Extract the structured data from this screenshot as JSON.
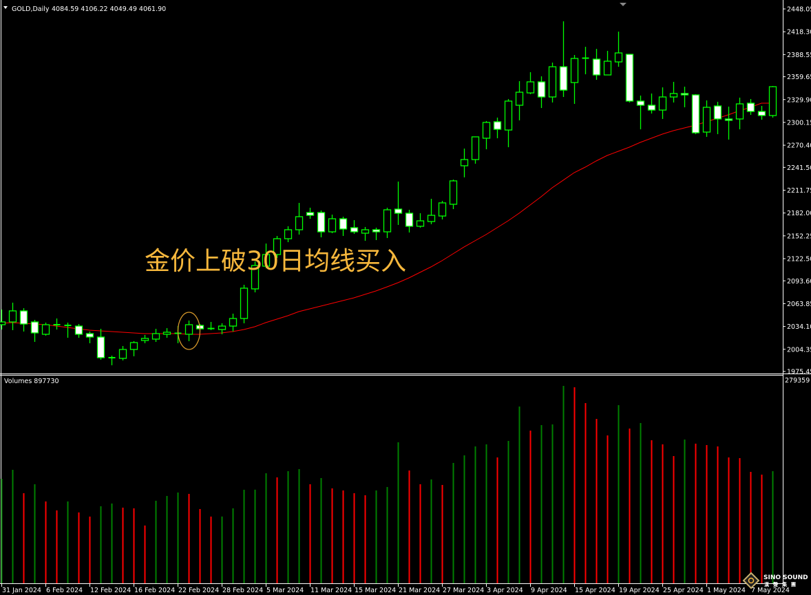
{
  "header": {
    "symbol": "GOLD,Daily",
    "ohlc": "4084.59 4106.22 4049.49 4061.90",
    "volume_label": "Volumes 897730"
  },
  "annotation": "金价上破30日均线买入",
  "logo": {
    "name": "SINO SOUND",
    "chinese": "漢聲集團"
  },
  "colors": {
    "background": "#000000",
    "candle_outline": "#00FF00",
    "bull_fill": "#000000",
    "bear_fill": "#FFFFFF",
    "ma_line": "#FF0000",
    "volume_up": "#008000",
    "volume_down": "#FF0000",
    "annotation": "#F6B73C",
    "axis": "#FFFFFF"
  },
  "chart_data": {
    "type": "candlestick",
    "title": "GOLD,Daily",
    "ylim": [
      1975.45,
      2448.05
    ],
    "y_tick_labels": [
      "2448.05",
      "2418.30",
      "2388.55",
      "2359.65",
      "2329.90",
      "2300.15",
      "2270.40",
      "2241.50",
      "2211.75",
      "2182.00",
      "2152.25",
      "2122.50",
      "2093.60",
      "2063.85",
      "2034.10",
      "2004.35",
      "1975.45"
    ],
    "x_tick_labels": [
      "31 Jan 2024",
      "6 Feb 2024",
      "12 Feb 2024",
      "16 Feb 2024",
      "22 Feb 2024",
      "28 Feb 2024",
      "5 Mar 2024",
      "11 Mar 2024",
      "15 Mar 2024",
      "21 Mar 2024",
      "27 Mar 2024",
      "3 Apr 2024",
      "9 Apr 2024",
      "15 Apr 2024",
      "19 Apr 2024",
      "25 Apr 2024",
      "1 May 2024",
      "7 May 2024"
    ],
    "x_tick_every_bars": 4,
    "candle_fields": [
      "open",
      "high",
      "low",
      "close"
    ],
    "candles": [
      [
        2036.4,
        2056.2,
        2030.1,
        2040.0
      ],
      [
        2040.0,
        2065.1,
        2029.3,
        2054.4
      ],
      [
        2054.4,
        2057.9,
        2027.5,
        2037.3
      ],
      [
        2040.0,
        2042.7,
        2014.0,
        2025.7
      ],
      [
        2023.9,
        2039.1,
        2022.1,
        2036.4
      ],
      [
        2035.5,
        2044.5,
        2030.1,
        2036.4
      ],
      [
        2035.5,
        2039.1,
        2019.4,
        2034.6
      ],
      [
        2034.6,
        2037.3,
        2019.4,
        2023.9
      ],
      [
        2024.8,
        2027.5,
        2012.2,
        2020.3
      ],
      [
        2020.3,
        2031.0,
        1990.7,
        1993.4
      ],
      [
        1992.5,
        1996.1,
        1983.5,
        1993.4
      ],
      [
        1992.5,
        2008.6,
        1989.8,
        2004.1
      ],
      [
        2004.1,
        2014.9,
        1995.2,
        2013.1
      ],
      [
        2015.8,
        2023.0,
        2012.2,
        2018.5
      ],
      [
        2017.6,
        2031.0,
        2014.0,
        2024.8
      ],
      [
        2023.9,
        2031.9,
        2019.4,
        2026.6
      ],
      [
        2024.8,
        2034.6,
        2012.2,
        2025.2
      ],
      [
        2023.9,
        2041.8,
        2014.9,
        2036.4
      ],
      [
        2035.5,
        2037.3,
        2029.3,
        2031.0
      ],
      [
        2031.0,
        2040.0,
        2029.3,
        2031.4
      ],
      [
        2030.1,
        2038.2,
        2023.9,
        2034.6
      ],
      [
        2034.6,
        2050.8,
        2027.5,
        2044.5
      ],
      [
        2044.5,
        2088.4,
        2038.2,
        2084.0
      ],
      [
        2083.1,
        2118.9,
        2078.6,
        2113.6
      ],
      [
        2112.7,
        2142.2,
        2110.0,
        2127.9
      ],
      [
        2127.9,
        2152.1,
        2123.4,
        2148.5
      ],
      [
        2148.5,
        2164.7,
        2144.0,
        2160.2
      ],
      [
        2160.2,
        2195.2,
        2153.9,
        2177.2
      ],
      [
        2182.6,
        2188.9,
        2174.5,
        2179.0
      ],
      [
        2182.6,
        2185.3,
        2150.3,
        2157.5
      ],
      [
        2157.5,
        2179.9,
        2155.7,
        2174.5
      ],
      [
        2174.5,
        2177.2,
        2152.1,
        2161.1
      ],
      [
        2162.9,
        2172.7,
        2154.8,
        2157.5
      ],
      [
        2155.7,
        2163.8,
        2145.8,
        2160.2
      ],
      [
        2160.2,
        2162.9,
        2146.7,
        2157.5
      ],
      [
        2157.5,
        2188.9,
        2149.4,
        2186.2
      ],
      [
        2187.1,
        2223.0,
        2166.5,
        2181.7
      ],
      [
        2181.7,
        2186.2,
        2156.6,
        2164.7
      ],
      [
        2164.7,
        2181.7,
        2162.9,
        2171.8
      ],
      [
        2170.9,
        2200.5,
        2167.4,
        2179.0
      ],
      [
        2178.1,
        2197.8,
        2173.6,
        2195.2
      ],
      [
        2193.4,
        2225.6,
        2187.1,
        2223.9
      ],
      [
        2243.6,
        2266.0,
        2228.5,
        2251.7
      ],
      [
        2251.7,
        2281.3,
        2246.3,
        2281.3
      ],
      [
        2279.5,
        2301.9,
        2265.1,
        2300.1
      ],
      [
        2301.0,
        2306.4,
        2279.5,
        2291.1
      ],
      [
        2290.2,
        2330.6,
        2267.8,
        2327.9
      ],
      [
        2322.5,
        2353.9,
        2302.8,
        2339.5
      ],
      [
        2338.6,
        2365.6,
        2336.9,
        2353.0
      ],
      [
        2353.0,
        2360.2,
        2318.9,
        2333.3
      ],
      [
        2333.3,
        2378.1,
        2326.1,
        2372.7
      ],
      [
        2372.7,
        2431.9,
        2333.3,
        2342.2
      ],
      [
        2352.1,
        2388.0,
        2324.3,
        2383.5
      ],
      [
        2383.5,
        2398.7,
        2362.9,
        2383.9
      ],
      [
        2382.6,
        2396.0,
        2355.7,
        2362.0
      ],
      [
        2362.0,
        2393.4,
        2362.0,
        2379.9
      ],
      [
        2379.0,
        2418.5,
        2372.7,
        2390.7
      ],
      [
        2388.9,
        2388.9,
        2326.1,
        2327.9
      ],
      [
        2327.9,
        2335.1,
        2291.1,
        2322.5
      ],
      [
        2322.5,
        2337.8,
        2311.7,
        2316.2
      ],
      [
        2316.2,
        2345.8,
        2304.6,
        2333.3
      ],
      [
        2333.3,
        2353.0,
        2326.1,
        2337.8
      ],
      [
        2337.8,
        2346.7,
        2319.8,
        2336.0
      ],
      [
        2336.0,
        2336.9,
        2284.8,
        2286.6
      ],
      [
        2287.5,
        2328.8,
        2281.3,
        2319.8
      ],
      [
        2321.6,
        2327.0,
        2284.8,
        2304.6
      ],
      [
        2304.6,
        2320.7,
        2277.7,
        2302.8
      ],
      [
        2304.6,
        2332.4,
        2291.1,
        2324.3
      ],
      [
        2325.2,
        2330.6,
        2309.9,
        2314.4
      ],
      [
        2314.4,
        2321.6,
        2303.7,
        2309.1
      ],
      [
        2309.1,
        2347.6,
        2306.4,
        2346.7
      ]
    ],
    "ma": [
      2038.2,
      2039.1,
      2038.2,
      2037.3,
      2036.4,
      2034.6,
      2032.8,
      2031.0,
      2029.3,
      2028.4,
      2027.5,
      2026.6,
      2025.7,
      2024.8,
      2024.8,
      2024.8,
      2024.8,
      2023.9,
      2023.9,
      2024.8,
      2025.7,
      2027.5,
      2030.1,
      2033.7,
      2039.1,
      2043.6,
      2048.1,
      2053.5,
      2057.1,
      2060.6,
      2064.2,
      2067.8,
      2071.4,
      2075.9,
      2080.4,
      2085.7,
      2091.1,
      2097.4,
      2104.6,
      2111.8,
      2119.8,
      2128.8,
      2137.7,
      2145.8,
      2153.9,
      2162.9,
      2171.8,
      2181.7,
      2192.5,
      2203.2,
      2214.9,
      2224.7,
      2234.6,
      2241.8,
      2249.9,
      2257.0,
      2262.4,
      2267.8,
      2274.1,
      2279.5,
      2284.8,
      2289.3,
      2292.9,
      2296.5,
      2301.0,
      2305.5,
      2310.0,
      2315.3,
      2319.8,
      2325.2,
      2325.2
    ],
    "highlight_bar_index": 17,
    "volume": {
      "max_label": "279359",
      "ylim": [
        0,
        279359
      ],
      "values": [
        140600,
        152625,
        121175,
        133200,
        110075,
        98050,
        110100,
        95275,
        89725,
        103600,
        107300,
        101750,
        100825,
        77700,
        111000,
        117475,
        122100,
        120250,
        99900,
        89725,
        89800,
        100825,
        125800,
        125900,
        148000,
        142450,
        150775,
        153550,
        133200,
        141525,
        127650,
        124875,
        121175,
        118400,
        124875,
        129500,
        189625,
        151700,
        133200,
        139675,
        132275,
        161875,
        172050,
        184075,
        186850,
        169275,
        191475,
        237725,
        205350,
        212750,
        213675,
        265475,
        263625,
        242350,
        221075,
        198875,
        239575,
        208125,
        215525,
        192400,
        186850,
        171125,
        193325,
        187775,
        185925,
        184075,
        169275,
        168350,
        149850,
        146150,
        150775
      ]
    }
  }
}
